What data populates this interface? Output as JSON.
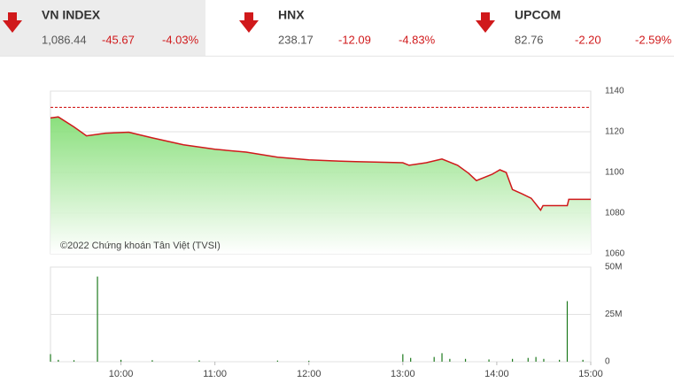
{
  "indices": [
    {
      "name": "VN INDEX",
      "value": "1,086.44",
      "change": "-45.67",
      "percent": "-4.03%"
    },
    {
      "name": "HNX",
      "value": "238.17",
      "change": "-12.09",
      "percent": "-4.83%"
    },
    {
      "name": "UPCOM",
      "value": "82.76",
      "change": "-2.20",
      "percent": "-2.59%"
    }
  ],
  "chart_data": [
    {
      "type": "line",
      "annotation": "©2022 Chứng khoán Tân Việt (TVSI)",
      "x": [
        555,
        560,
        570,
        578,
        590,
        605,
        620,
        640,
        660,
        680,
        700,
        720,
        735,
        750,
        780,
        784,
        795,
        805,
        815,
        822,
        827,
        837,
        842,
        846,
        850,
        856,
        862,
        868,
        869.5,
        885,
        886,
        900
      ],
      "values": [
        1126.8,
        1127.3,
        1122.4,
        1118,
        1119.3,
        1119.8,
        1117,
        1113.6,
        1111.4,
        1110,
        1107.5,
        1106.2,
        1105.7,
        1105.3,
        1104.8,
        1103.5,
        1104.8,
        1106.6,
        1103.5,
        1099.6,
        1096,
        1099.1,
        1101.3,
        1100,
        1091.6,
        1089.5,
        1087.3,
        1081.5,
        1083.7,
        1083.7,
        1086.8,
        1086.8
      ],
      "color": "#d0191b",
      "reference_line": 1132,
      "xlim": [
        555,
        900
      ],
      "ylim": [
        1060,
        1140
      ],
      "yticks": [
        1060,
        1080,
        1100,
        1120,
        1140
      ],
      "grid": true
    },
    {
      "type": "bar",
      "x": [
        555,
        560,
        570,
        585,
        600,
        620,
        650,
        700,
        720,
        780,
        785,
        800,
        805,
        810,
        820,
        835,
        850,
        860,
        865,
        870,
        880,
        885,
        895
      ],
      "values": [
        4000000,
        1000000,
        800000,
        45000000,
        1000000,
        800000,
        700000,
        600000,
        500000,
        4000000,
        2000000,
        2500000,
        4500000,
        1500000,
        1500000,
        1200000,
        1500000,
        2000000,
        2500000,
        1500000,
        1000000,
        32000000,
        1000000
      ],
      "color": "#1e7a1e",
      "xlim": [
        555,
        900
      ],
      "xticks": [
        {
          "value": 600,
          "label": "10:00"
        },
        {
          "value": 660,
          "label": "11:00"
        },
        {
          "value": 720,
          "label": "12:00"
        },
        {
          "value": 780,
          "label": "13:00"
        },
        {
          "value": 840,
          "label": "14:00"
        },
        {
          "value": 900,
          "label": "15:00"
        }
      ],
      "ylim": [
        0,
        50000000
      ],
      "yticks": [
        0,
        {
          "value": 25000000,
          "label": "25M"
        },
        {
          "value": 50000000,
          "label": "50M"
        }
      ],
      "grid": true
    }
  ]
}
